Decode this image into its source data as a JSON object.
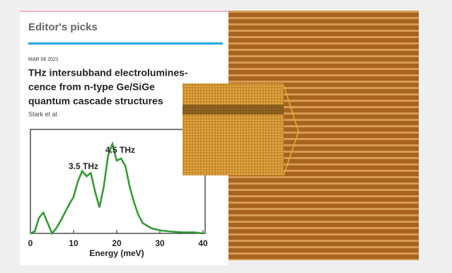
{
  "header": {
    "title": "Editor's picks"
  },
  "article": {
    "date": "MAR 08 2021",
    "title_lines": [
      "THz intersubband electrolumines-",
      "cence from n-type Ge/SiGe",
      "quantum cascade structures"
    ],
    "authors": "Stark et al."
  },
  "figure": {
    "type": "line",
    "xlabel": "Energy (meV)",
    "annotations": [
      "3.5 THz",
      "4.5 THz"
    ],
    "xlim": [
      0,
      40
    ],
    "xticks": [
      0,
      10,
      20,
      30,
      40
    ],
    "ylim": [
      0,
      1
    ],
    "x": [
      0,
      1,
      2,
      3,
      4,
      5,
      6,
      7,
      8,
      9,
      10,
      11,
      12,
      13,
      14,
      15,
      16,
      17,
      18,
      19,
      20,
      21,
      22,
      23,
      24,
      25,
      26,
      28,
      30,
      32,
      35,
      38,
      40
    ],
    "series": [
      {
        "color": "#2e9a2e",
        "values": [
          0,
          0.02,
          0.15,
          0.2,
          0.1,
          0,
          0.05,
          0.12,
          0.2,
          0.28,
          0.35,
          0.5,
          0.6,
          0.55,
          0.58,
          0.4,
          0.25,
          0.45,
          0.75,
          0.86,
          0.7,
          0.72,
          0.65,
          0.45,
          0.3,
          0.18,
          0.1,
          0.05,
          0.03,
          0.02,
          0.01,
          0.01,
          0
        ]
      }
    ]
  }
}
